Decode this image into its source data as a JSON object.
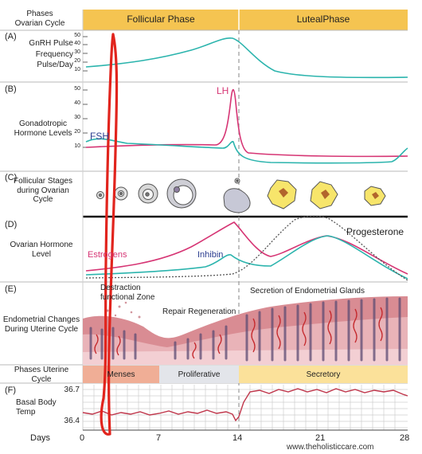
{
  "header": {
    "cycle_label": "Phases\nOvarian Cycle",
    "follicular": "Follicular Phase",
    "luteal": "LutealPhase"
  },
  "panels": {
    "a": {
      "letter": "(A)",
      "label": "GnRH Pulse\nFrequency\nPulse/Day",
      "ticks": [
        "50",
        "40",
        "30",
        "20",
        "10"
      ]
    },
    "b": {
      "letter": "(B)",
      "label": "Gonadotropic\nHormone Levels",
      "ticks": [
        "50",
        "40",
        "30",
        "20",
        "10"
      ],
      "lh": "LH",
      "fsh": "FSH"
    },
    "c": {
      "letter": "(C)",
      "label": "Follicular Stages\nduring Ovarian\nCycle"
    },
    "d": {
      "letter": "(D)",
      "label": "Ovarian Hormone\nLevel",
      "estrogens": "Estrogens",
      "inhibin": "Inhibin",
      "progesterone": "Progesterone"
    },
    "e": {
      "letter": "(E)",
      "label": "Endometrial Changes\nDuring Uterine Cycle",
      "destruction": "Destraction\nfunctional Zone",
      "repair": "Repair Regeneration",
      "secretion": "Secretion of Endometrial Glands"
    },
    "uterine": {
      "label": "Phases Uterine\nCycle",
      "menses": "Menses",
      "proliferative": "Proliferative",
      "secretory": "Secretory"
    },
    "f": {
      "letter": "(F)",
      "label": "Basal Body\nTemp",
      "t_high": "36.7",
      "t_low": "36.4"
    }
  },
  "footer": {
    "days_label": "Days",
    "ticks": [
      "0",
      "7",
      "14",
      "21",
      "28"
    ],
    "watermark": "www.theholisticcare.com"
  },
  "colors": {
    "header_bg": "#f5c451",
    "teal": "#2bb4ad",
    "magenta": "#d63574",
    "navy": "#2b3d8f",
    "menses": "#f0ae96",
    "proliferative": "#e3e5ea",
    "secretory": "#fbe19a",
    "follicle": "#f7e56b",
    "annotation": "#e1241d"
  }
}
